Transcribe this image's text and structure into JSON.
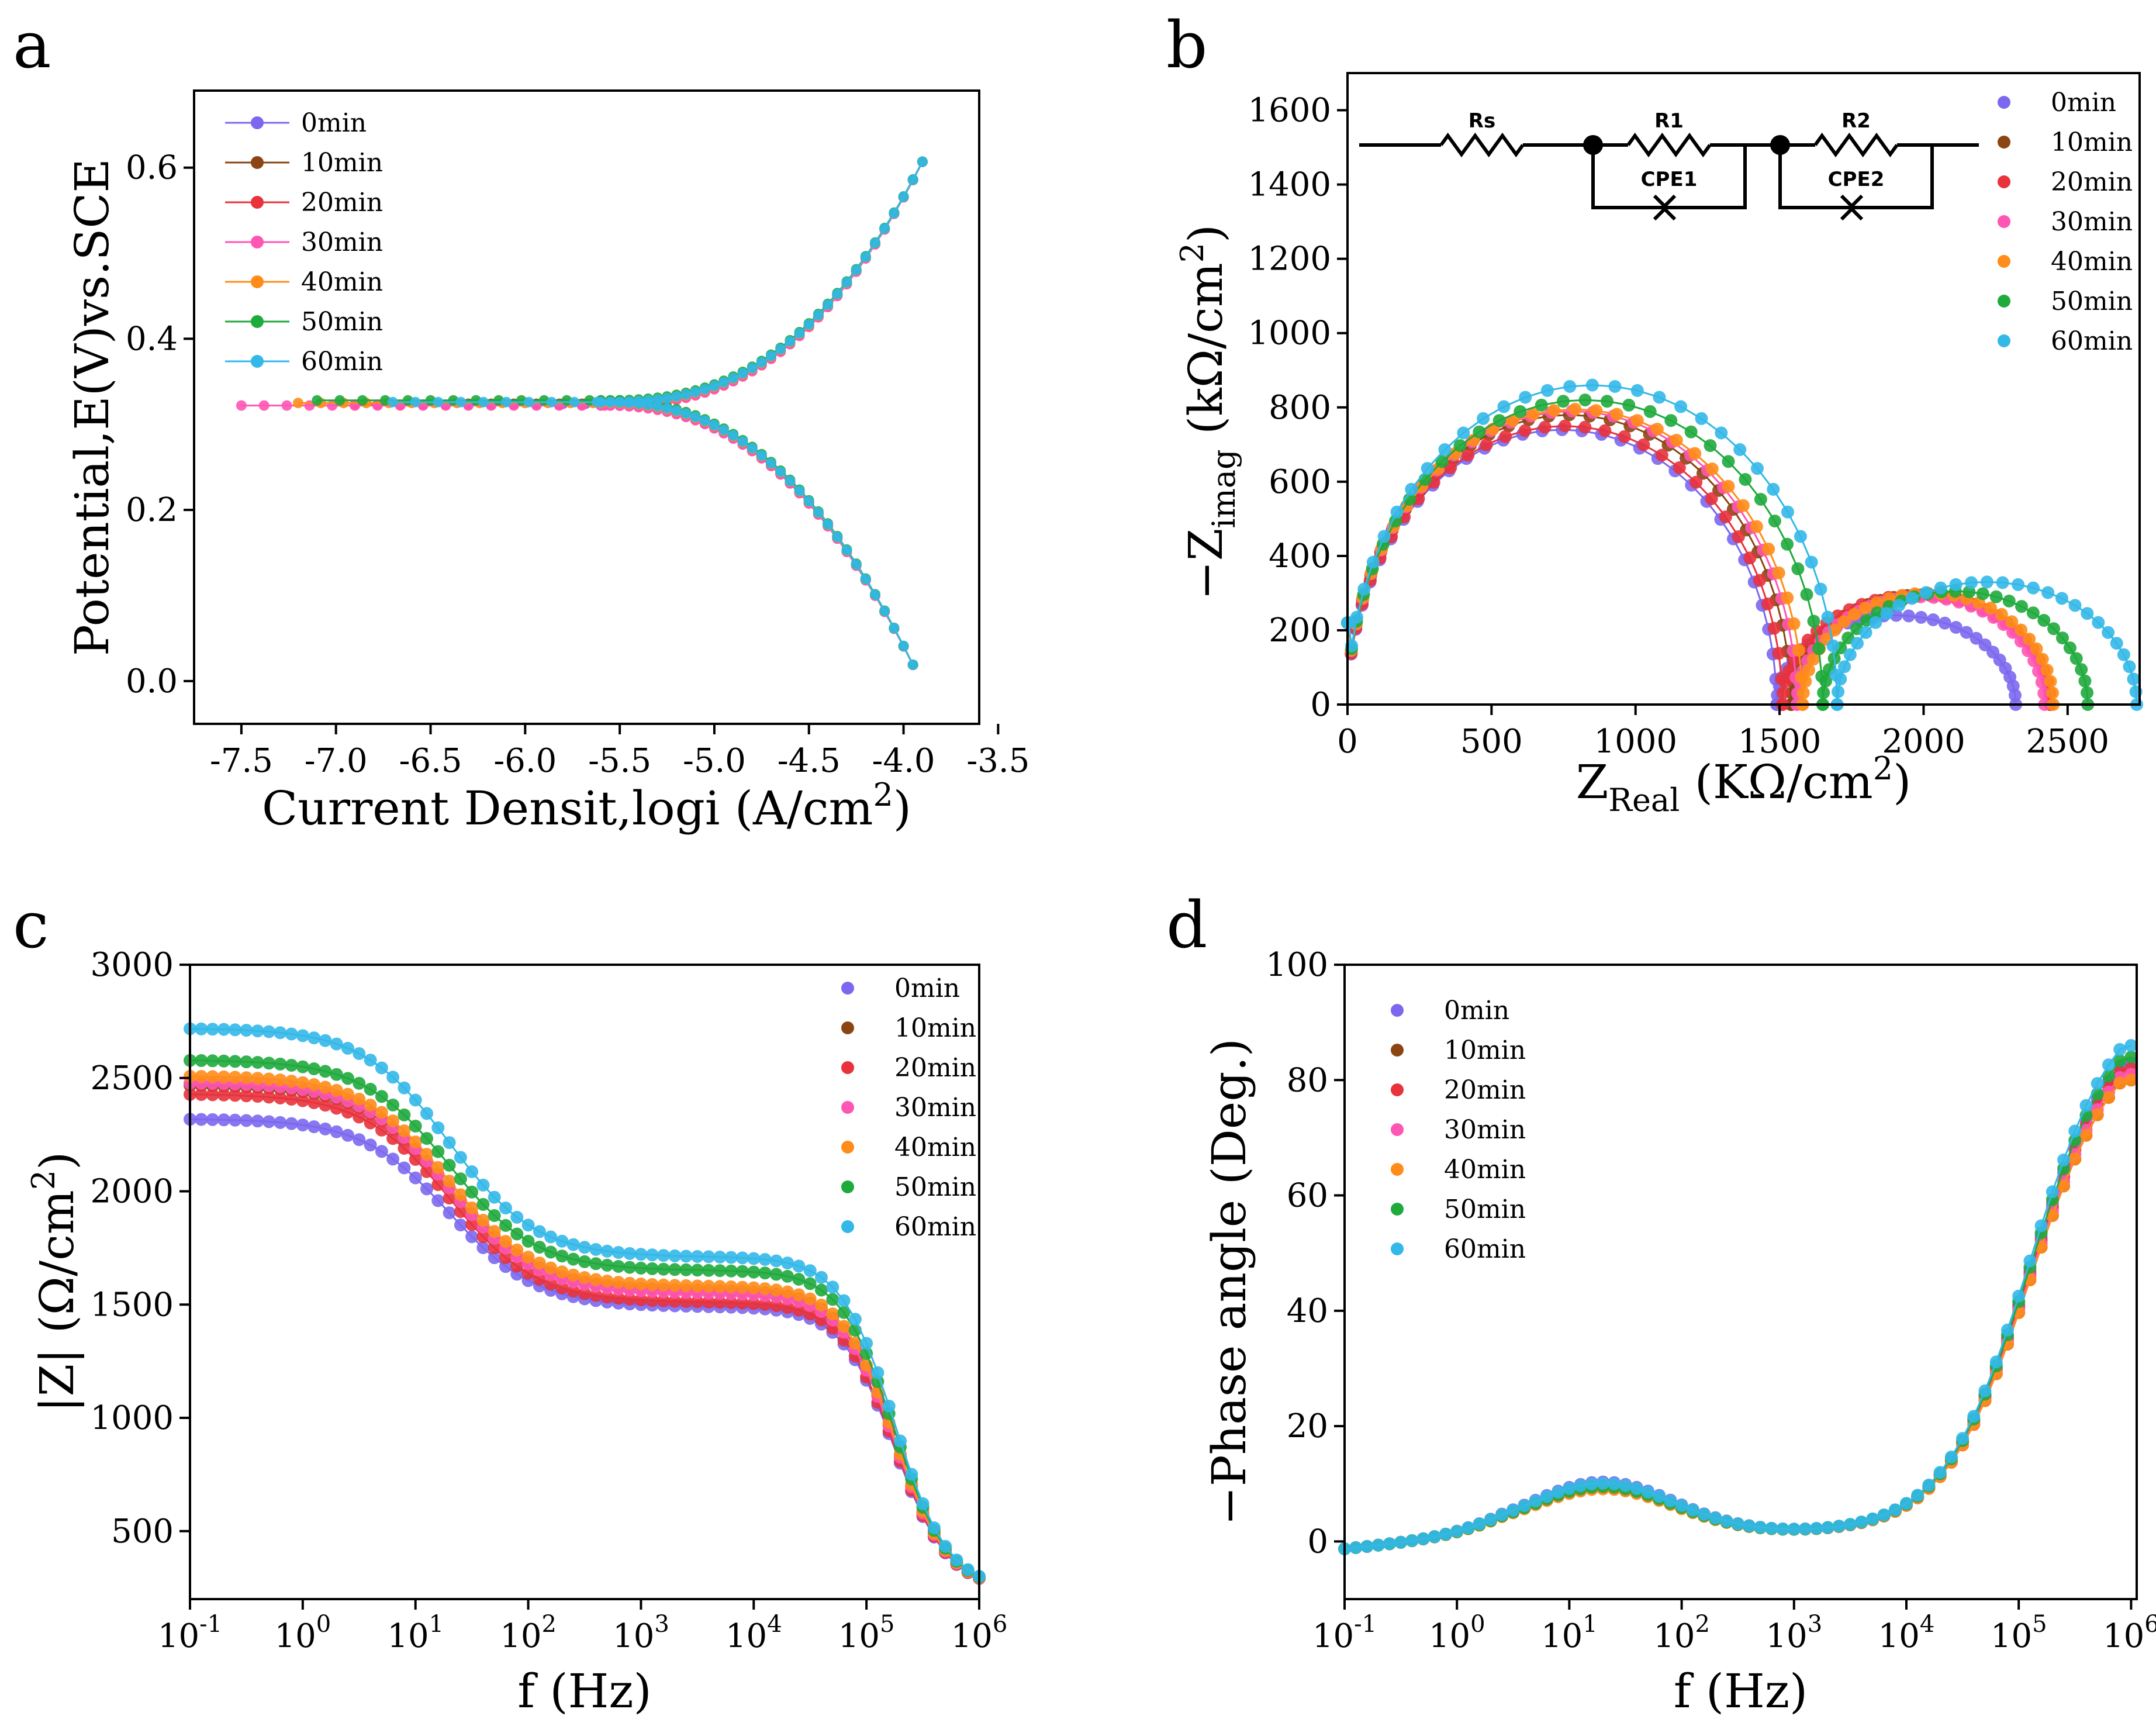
{
  "figure": {
    "series_colors": {
      "0min": "#7b68ee",
      "10min": "#8b4513",
      "20min": "#e8323c",
      "30min": "#ff55b4",
      "40min": "#ff8c1a",
      "50min": "#1faa3c",
      "60min": "#33b8e8"
    }
  },
  "chart_data": [
    {
      "id": "a",
      "panel_letter": "a",
      "type": "scatter",
      "title": "",
      "xlabel": "Current Densit,logi (A/cm",
      "xlabel_sup": "2",
      "xlabel_tail": ")",
      "ylabel": "Potential,E(V)vs.SCE",
      "xlim": [
        -7.75,
        -3.6
      ],
      "ylim": [
        -0.05,
        0.69
      ],
      "xticks": [
        -7.5,
        -7.0,
        -6.5,
        -6.0,
        -5.5,
        -5.0,
        -4.5,
        -4.0,
        -3.5
      ],
      "xtick_labels": [
        "-7.5",
        "-7.0",
        "-6.5",
        "-6.0",
        "-5.5",
        "-5.0",
        "-4.5",
        "-4.0",
        "-3.5"
      ],
      "yticks": [
        0.0,
        0.2,
        0.4,
        0.6
      ],
      "ytick_labels": [
        "0.0",
        "0.2",
        "0.4",
        "0.6"
      ],
      "legend_position": "top-left",
      "legend": [
        "0min",
        "10min",
        "20min",
        "30min",
        "40min",
        "50min",
        "60min"
      ],
      "series": [
        {
          "name": "0min",
          "ecorr": 0.324,
          "start": -5.8
        },
        {
          "name": "10min",
          "ecorr": 0.324,
          "start": -6.3
        },
        {
          "name": "20min",
          "ecorr": 0.323,
          "start": -6.9
        },
        {
          "name": "30min",
          "ecorr": 0.322,
          "start": -7.5
        },
        {
          "name": "40min",
          "ecorr": 0.325,
          "start": -7.2
        },
        {
          "name": "50min",
          "ecorr": 0.328,
          "start": -7.1
        },
        {
          "name": "60min",
          "ecorr": 0.326,
          "start": -6.7
        }
      ],
      "anodic_end": [
        -3.87,
        0.62
      ],
      "cathodic_end": [
        -3.93,
        0.01
      ]
    },
    {
      "id": "b",
      "panel_letter": "b",
      "type": "scatter",
      "title": "",
      "xlabel": "Z",
      "xlabel_sub": "Real",
      "xlabel_tail": " (KΩ/cm",
      "xlabel_sup": "2",
      "xlabel_end": ")",
      "ylabel": "−Z",
      "ylabel_sub": "imag",
      "ylabel_tail": " (kΩ/cm",
      "ylabel_sup": "2",
      "ylabel_end": ")",
      "xlim": [
        0,
        2750
      ],
      "ylim": [
        0,
        1700
      ],
      "xticks": [
        0,
        500,
        1000,
        1500,
        2000,
        2500
      ],
      "xtick_labels": [
        "0",
        "500",
        "1000",
        "1500",
        "2000",
        "2500"
      ],
      "yticks": [
        0,
        200,
        400,
        600,
        800,
        1000,
        1200,
        1400,
        1600
      ],
      "ytick_labels": [
        "0",
        "200",
        "400",
        "600",
        "800",
        "1000",
        "1200",
        "1400",
        "1600"
      ],
      "legend_position": "top-right",
      "legend": [
        "0min",
        "10min",
        "20min",
        "30min",
        "40min",
        "50min",
        "60min"
      ],
      "circuit_labels": {
        "rs": "Rs",
        "r1": "R1",
        "cpe1": "CPE1",
        "r2": "R2",
        "cpe2": "CPE2"
      },
      "series": [
        {
          "name": "0min",
          "arc1": [
            0,
            1490,
            740
          ],
          "arc2": [
            1490,
            2320,
            240
          ]
        },
        {
          "name": "10min",
          "arc1": [
            0,
            1540,
            780
          ],
          "arc2": [
            1540,
            2440,
            295
          ]
        },
        {
          "name": "20min",
          "arc1": [
            0,
            1510,
            750
          ],
          "arc2": [
            1510,
            2440,
            295
          ]
        },
        {
          "name": "30min",
          "arc1": [
            0,
            1560,
            790
          ],
          "arc2": [
            1560,
            2420,
            290
          ]
        },
        {
          "name": "40min",
          "arc1": [
            0,
            1580,
            795
          ],
          "arc2": [
            1580,
            2450,
            300
          ]
        },
        {
          "name": "50min",
          "arc1": [
            0,
            1650,
            820
          ],
          "arc2": [
            1650,
            2570,
            305
          ]
        },
        {
          "name": "60min",
          "arc1": [
            0,
            1700,
            860
          ],
          "arc2": [
            1700,
            2740,
            330
          ]
        }
      ]
    },
    {
      "id": "c",
      "panel_letter": "c",
      "type": "scatter",
      "title": "",
      "xlabel": "f (Hz)",
      "ylabel": "|Z| (Ω/cm",
      "ylabel_sup": "2",
      "ylabel_end": ")",
      "xscale": "log",
      "xlim": [
        -1,
        6
      ],
      "ylim": [
        200,
        3000
      ],
      "xticks": [
        -1,
        0,
        1,
        2,
        3,
        4,
        5,
        6
      ],
      "xtick_labels": [
        "10",
        "10",
        "10",
        "10",
        "10",
        "10",
        "10",
        "10"
      ],
      "xtick_exponents": [
        "-1",
        "0",
        "1",
        "2",
        "3",
        "4",
        "5",
        "6"
      ],
      "yticks": [
        500,
        1000,
        1500,
        2000,
        2500,
        3000
      ],
      "ytick_labels": [
        "500",
        "1000",
        "1500",
        "2000",
        "2500",
        "3000"
      ],
      "legend_position": "top-right",
      "legend": [
        "0min",
        "10min",
        "20min",
        "30min",
        "40min",
        "50min",
        "60min"
      ],
      "series": [
        {
          "name": "0min",
          "low": 2320,
          "plateau": 1490
        },
        {
          "name": "10min",
          "low": 2470,
          "plateau": 1560
        },
        {
          "name": "20min",
          "low": 2430,
          "plateau": 1510
        },
        {
          "name": "30min",
          "low": 2480,
          "plateau": 1550
        },
        {
          "name": "40min",
          "low": 2510,
          "plateau": 1580
        },
        {
          "name": "50min",
          "low": 2580,
          "plateau": 1650
        },
        {
          "name": "60min",
          "low": 2720,
          "plateau": 1710
        }
      ]
    },
    {
      "id": "d",
      "panel_letter": "d",
      "type": "scatter",
      "title": "",
      "xlabel": "f (Hz)",
      "ylabel": "−Phase angle (Deg.)",
      "xscale": "log",
      "xlim": [
        -1,
        6.05
      ],
      "ylim": [
        -10,
        100
      ],
      "xticks": [
        -1,
        0,
        1,
        2,
        3,
        4,
        5,
        6
      ],
      "xtick_labels": [
        "10",
        "10",
        "10",
        "10",
        "10",
        "10",
        "10",
        "10"
      ],
      "xtick_exponents": [
        "-1",
        "0",
        "1",
        "2",
        "3",
        "4",
        "5",
        "6"
      ],
      "yticks": [
        0,
        20,
        40,
        60,
        80,
        100
      ],
      "ytick_labels": [
        "0",
        "20",
        "40",
        "60",
        "80",
        "100"
      ],
      "legend_position": "top-left",
      "legend": [
        "0min",
        "10min",
        "20min",
        "30min",
        "40min",
        "50min",
        "60min"
      ],
      "series": [
        {
          "name": "0min",
          "peak": 8.8,
          "end": 83
        },
        {
          "name": "10min",
          "peak": 8.2,
          "end": 80
        },
        {
          "name": "20min",
          "peak": 7.8,
          "end": 82
        },
        {
          "name": "30min",
          "peak": 8.4,
          "end": 81
        },
        {
          "name": "40min",
          "peak": 7.6,
          "end": 80
        },
        {
          "name": "50min",
          "peak": 8.0,
          "end": 84
        },
        {
          "name": "60min",
          "peak": 8.6,
          "end": 86
        }
      ]
    }
  ]
}
